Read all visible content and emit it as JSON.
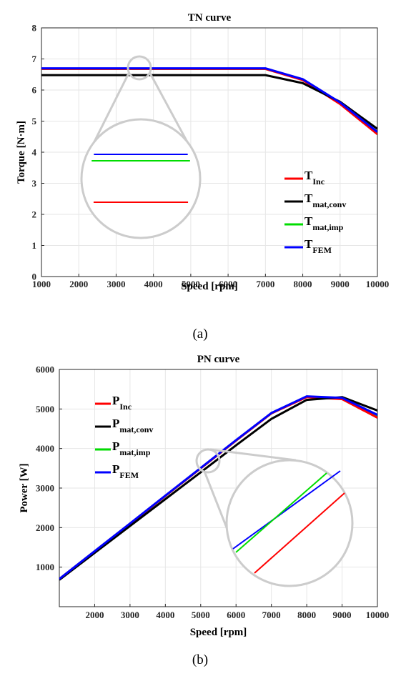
{
  "chart_data": [
    {
      "type": "line",
      "title": "TN curve",
      "xlabel": "Speed [rpm]",
      "ylabel": "Torque [N·m]",
      "caption": "(a)",
      "xlim": [
        1000,
        10000
      ],
      "ylim": [
        0,
        8
      ],
      "xticks": [
        1000,
        2000,
        3000,
        4000,
        5000,
        6000,
        7000,
        8000,
        9000,
        10000
      ],
      "yticks": [
        0,
        1,
        2,
        3,
        4,
        5,
        6,
        7,
        8
      ],
      "grid": true,
      "legend_position": "lower-right",
      "x": [
        1000,
        2000,
        3000,
        4000,
        5000,
        6000,
        7000,
        8000,
        9000,
        10000
      ],
      "series": [
        {
          "name_main": "T",
          "name_sub": "Inc",
          "color": "#ff0000",
          "values": [
            6.68,
            6.68,
            6.68,
            6.68,
            6.68,
            6.68,
            6.68,
            6.32,
            5.55,
            4.58
          ]
        },
        {
          "name_main": "T",
          "name_sub": "mat,conv",
          "color": "#000000",
          "values": [
            6.48,
            6.48,
            6.48,
            6.48,
            6.48,
            6.48,
            6.48,
            6.22,
            5.62,
            4.75
          ]
        },
        {
          "name_main": "T",
          "name_sub": "mat,imp",
          "color": "#00dd00",
          "values": [
            6.68,
            6.68,
            6.68,
            6.68,
            6.68,
            6.68,
            6.68,
            6.34,
            5.58,
            4.62
          ]
        },
        {
          "name_main": "T",
          "name_sub": "FEM",
          "color": "#0000ff",
          "values": [
            6.7,
            6.7,
            6.7,
            6.7,
            6.7,
            6.7,
            6.7,
            6.35,
            5.6,
            4.65
          ]
        }
      ]
    },
    {
      "type": "line",
      "title": "PN curve",
      "xlabel": "Speed [rpm]",
      "ylabel": "Power [W]",
      "caption": "(b)",
      "xlim": [
        1000,
        10000
      ],
      "ylim": [
        0,
        6000
      ],
      "xticks": [
        2000,
        3000,
        4000,
        5000,
        6000,
        7000,
        8000,
        9000,
        10000
      ],
      "yticks": [
        1000,
        2000,
        3000,
        4000,
        5000,
        6000
      ],
      "grid": true,
      "legend_position": "upper-left",
      "x": [
        1000,
        2000,
        3000,
        4000,
        5000,
        6000,
        7000,
        8000,
        9000,
        10000
      ],
      "series": [
        {
          "name_main": "P",
          "name_sub": "Inc",
          "color": "#ff0000",
          "values": [
            700,
            1400,
            2100,
            2800,
            3500,
            4200,
            4890,
            5300,
            5250,
            4780
          ]
        },
        {
          "name_main": "P",
          "name_sub": "mat,conv",
          "color": "#000000",
          "values": [
            680,
            1360,
            2040,
            2720,
            3400,
            4080,
            4750,
            5230,
            5300,
            4960
          ]
        },
        {
          "name_main": "P",
          "name_sub": "mat,imp",
          "color": "#00dd00",
          "values": [
            700,
            1400,
            2100,
            2800,
            3500,
            4200,
            4890,
            5310,
            5270,
            4830
          ]
        },
        {
          "name_main": "P",
          "name_sub": "FEM",
          "color": "#0000ff",
          "values": [
            702,
            1404,
            2106,
            2808,
            3510,
            4212,
            4900,
            5320,
            5280,
            4850
          ]
        }
      ]
    }
  ]
}
